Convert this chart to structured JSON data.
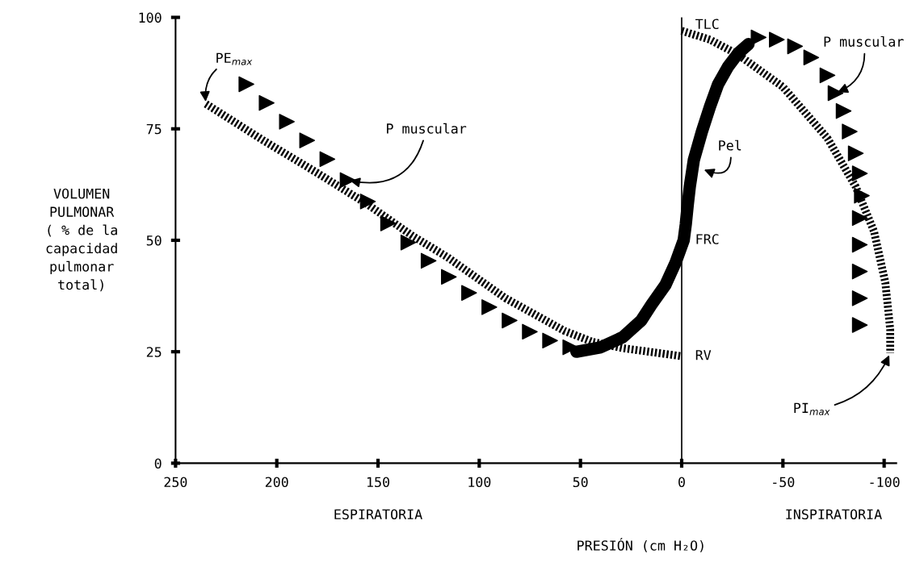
{
  "chart_data": {
    "type": "line",
    "xlabel": "PRESIÓN (cm H₂O)",
    "ylabel": "VOLUMEN\nPULMONAR\n( % de la\ncapacidad\npulmonar\ntotal)",
    "xlim": [
      250,
      -106
    ],
    "ylim": [
      0,
      100
    ],
    "xticks": [
      250,
      200,
      150,
      100,
      50,
      0,
      -50,
      -100
    ],
    "yticks": [
      0,
      25,
      50,
      75,
      100
    ],
    "grid": false,
    "legend": false,
    "series": [
      {
        "type": "line",
        "line_style": "dashed",
        "color": "#000000",
        "x": [
          235,
          207,
          180,
          155,
          133,
          116,
          87,
          58,
          44,
          29,
          0
        ],
        "values": [
          80.6,
          72.5,
          65.1,
          58,
          51,
          46.3,
          37,
          29.7,
          27.2,
          25.8,
          24
        ]
      },
      {
        "type": "scatter",
        "marker": "triangle",
        "color": "#000000",
        "x": [
          215,
          205,
          195,
          185,
          175,
          165,
          155,
          145,
          135,
          125,
          115,
          105,
          95,
          85,
          75,
          65,
          55
        ],
        "values": [
          85,
          80.8,
          76.6,
          72.4,
          68.2,
          63.5,
          58.7,
          53.8,
          49.5,
          45.4,
          41.8,
          38.2,
          35,
          32,
          29.5,
          27.5,
          26
        ]
      },
      {
        "type": "line",
        "line_style": "solid",
        "color": "#000000",
        "x": [
          52,
          40,
          29,
          20,
          15,
          8,
          3,
          -1,
          -2,
          -3,
          -4,
          -6,
          -10,
          -14,
          -18,
          -23,
          -28,
          -33
        ],
        "values": [
          25,
          26,
          28.3,
          32,
          35.5,
          40,
          45,
          50,
          53.5,
          58,
          62,
          68,
          74.4,
          80,
          85,
          89,
          92,
          94
        ]
      },
      {
        "type": "scatter",
        "marker": "triangle",
        "color": "#000000",
        "x": [
          -38,
          -47,
          -56,
          -64,
          -72,
          -76,
          -80,
          -83,
          -86,
          -88,
          -89,
          -88,
          -88,
          -88,
          -88,
          -88
        ],
        "values": [
          95.5,
          95,
          93.5,
          91,
          87,
          83,
          79,
          74.4,
          69.5,
          65,
          60,
          55,
          49,
          43,
          37,
          31
        ]
      },
      {
        "type": "line",
        "line_style": "dashed",
        "color": "#000000",
        "x": [
          0,
          -14,
          -28,
          -50,
          -72,
          -86,
          -95,
          -100.6,
          -103,
          -103
        ],
        "values": [
          97,
          95,
          91.6,
          84.4,
          72.9,
          62,
          52,
          40.5,
          30,
          24.7
        ]
      }
    ],
    "ref_lines": [
      {
        "axis": "x",
        "value": 0,
        "color": "#000000"
      }
    ],
    "annotations": [
      {
        "text": "PE$_{max}$",
        "x": 235,
        "y": 80.6
      },
      {
        "text": "P muscular",
        "x": 165,
        "y": 63.5
      },
      {
        "text": "Pel",
        "x": -10,
        "y": 66
      },
      {
        "text": "P muscular",
        "x": -76,
        "y": 83
      },
      {
        "text": "PI$_{max}$",
        "x": -103,
        "y": 24.7
      },
      {
        "text": "TLC",
        "x": 0,
        "y": 97
      },
      {
        "text": "FRC",
        "x": 0,
        "y": 50
      },
      {
        "text": "RV",
        "x": 0,
        "y": 24
      },
      "ESPIRATORIA",
      "INSPIRATORIA"
    ]
  }
}
